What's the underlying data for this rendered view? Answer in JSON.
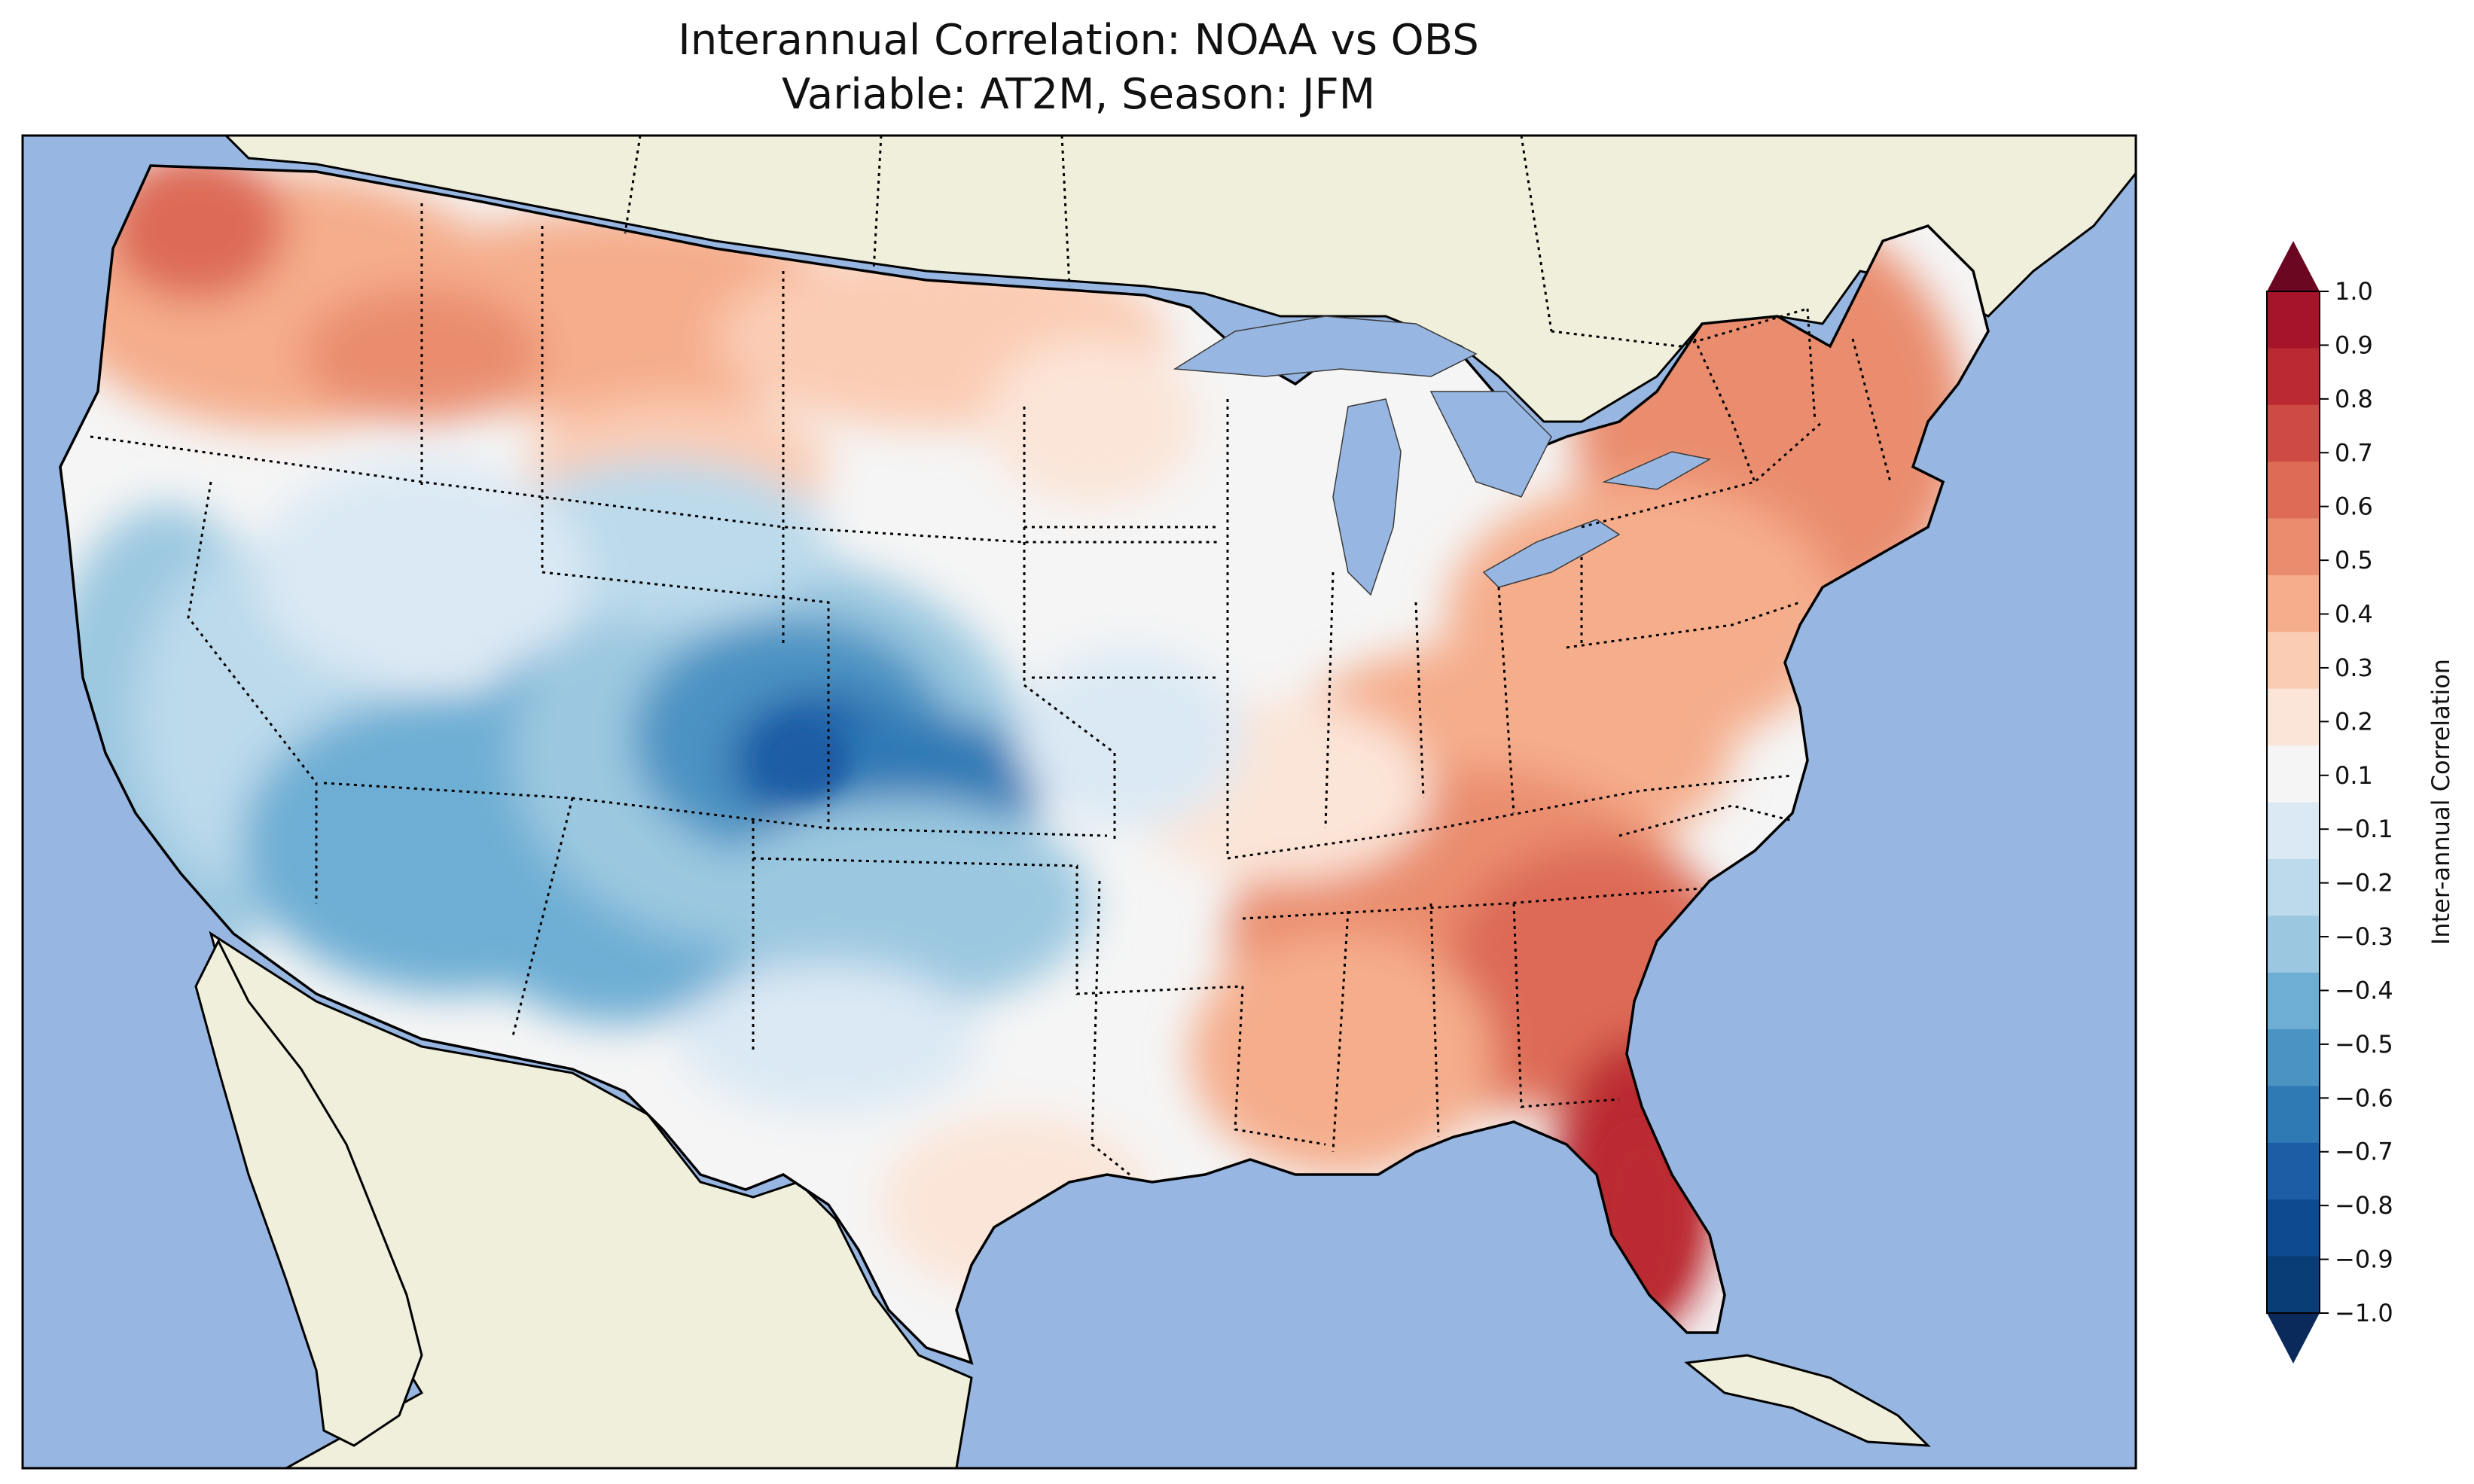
{
  "figure": {
    "title_line1": "Interannual Correlation: NOAA vs OBS",
    "title_line2": "Variable: AT2M, Season: JFM"
  },
  "colorbar": {
    "label": "Inter-annual Correlation",
    "ticks": [
      "1.0",
      "0.9",
      "0.8",
      "0.7",
      "0.6",
      "0.5",
      "0.4",
      "0.3",
      "0.2",
      "0.1",
      "−0.1",
      "−0.2",
      "−0.3",
      "−0.4",
      "−0.5",
      "−0.6",
      "−0.7",
      "−0.8",
      "−0.9",
      "−1.0"
    ],
    "colors_top_to_bottom": [
      "#a51429",
      "#bb2a33",
      "#cd4a45",
      "#dd6b56",
      "#ea8d6e",
      "#f5ad8c",
      "#fbccb4",
      "#fbe5d8",
      "#f5f5f5",
      "#dbe9f4",
      "#bcdaeb",
      "#9bc8e0",
      "#6eaed4",
      "#4b93c3",
      "#2f79b5",
      "#1c5da6",
      "#0d4a90",
      "#083c74"
    ],
    "extend_max_color": "#6c0721",
    "extend_min_color": "#0b2a5c"
  },
  "map": {
    "ocean_color": "#97b6e1",
    "land_color": "#efefdb",
    "lake_color": "#97b6e1",
    "projection": "Lambert conformal over the contiguous United States",
    "pattern": {
      "positive": [
        "Northwest",
        "Northern Rockies",
        "Northern Plains",
        "Northeast",
        "Mid-Atlantic",
        "Southeast",
        "Florida"
      ],
      "negative": [
        "California",
        "Great Basin",
        "Southwest",
        "Colorado",
        "Kansas",
        "Oklahoma"
      ],
      "near_zero": [
        "Midwest",
        "Texas",
        "Upper Great Plains"
      ]
    }
  }
}
